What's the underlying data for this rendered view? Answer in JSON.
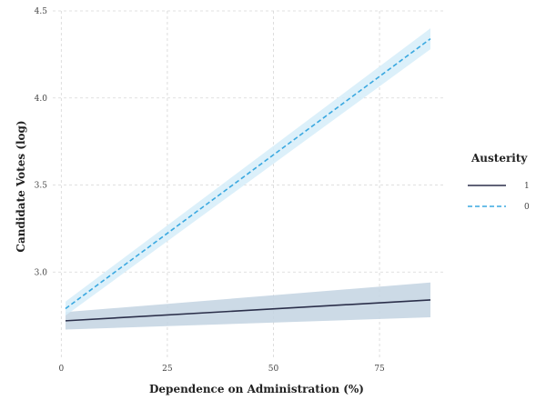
{
  "chart_data": {
    "type": "line",
    "title": "",
    "xlabel": "Dependence on Administration (%)",
    "ylabel": "Candidate Votes (log)",
    "xlim": [
      -2,
      90
    ],
    "ylim": [
      2.5,
      4.5
    ],
    "xticks": [
      0,
      25,
      50,
      75
    ],
    "yticks": [
      3.0,
      3.5,
      4.0,
      4.5
    ],
    "xtick_labels": [
      "0",
      "25",
      "50",
      "75"
    ],
    "ytick_labels": [
      "3.0",
      "3.5",
      "4.0",
      "4.5"
    ],
    "grid": true,
    "legend": {
      "title": "Austerity",
      "position": "right"
    },
    "series": [
      {
        "name": "1",
        "style": "solid",
        "color": "#2b2f4a",
        "band_color": "#c3d3e2",
        "x": [
          1,
          87
        ],
        "y": [
          2.72,
          2.84
        ],
        "ci_lower": [
          2.67,
          2.74
        ],
        "ci_upper": [
          2.77,
          2.94
        ]
      },
      {
        "name": "0",
        "style": "dashed",
        "color": "#3aa8e0",
        "band_color": "#d6edf9",
        "x": [
          1,
          87
        ],
        "y": [
          2.79,
          4.34
        ],
        "ci_lower": [
          2.75,
          4.28
        ],
        "ci_upper": [
          2.83,
          4.4
        ]
      }
    ]
  }
}
